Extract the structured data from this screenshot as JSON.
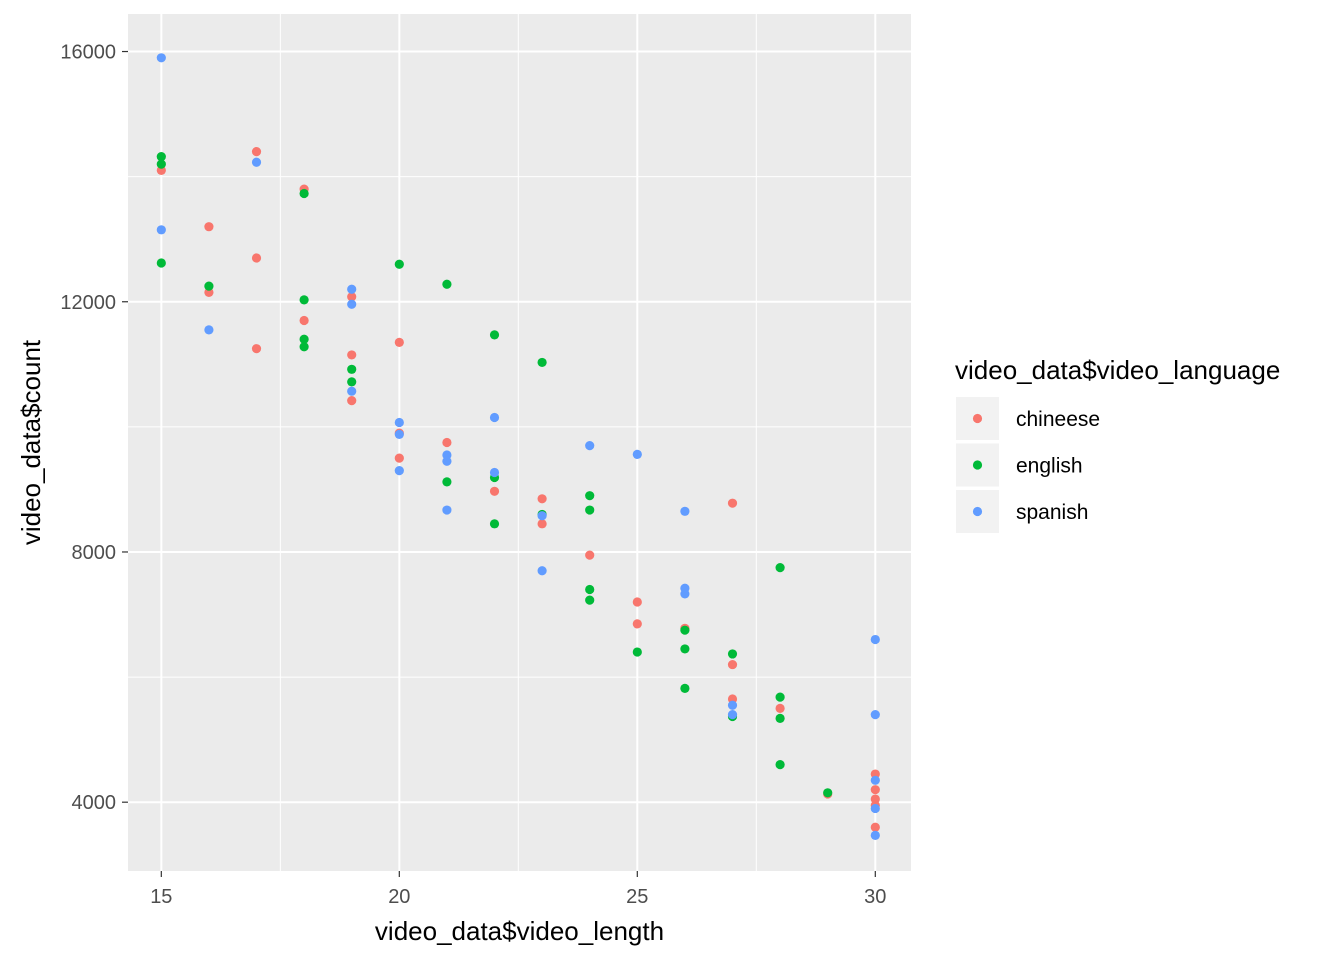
{
  "chart_data": {
    "type": "scatter",
    "xlabel": "video_data$video_length",
    "ylabel": "video_data$count",
    "xlim": [
      14.3,
      30.75
    ],
    "ylim": [
      2900,
      16600
    ],
    "x_ticks": [
      15,
      20,
      25,
      30
    ],
    "x_minor": [
      17.5,
      22.5,
      27.5
    ],
    "y_ticks": [
      4000,
      8000,
      12000,
      16000
    ],
    "y_minor": [
      6000,
      10000,
      14000
    ],
    "x_tick_labels": [
      "15",
      "20",
      "25",
      "30"
    ],
    "y_tick_labels": [
      "4000",
      "8000",
      "12000",
      "16000"
    ],
    "grid": true,
    "legend": {
      "title": "video_data$video_language",
      "placement": "right"
    },
    "colors": {
      "panel_bg": "#EBEBEB",
      "grid": "#FFFFFF",
      "chineese": "#F8766D",
      "english": "#00BA38",
      "spanish": "#619CFF"
    },
    "series": [
      {
        "name": "chineese",
        "color": "#F8766D",
        "points": [
          [
            15,
            14100
          ],
          [
            16,
            13200
          ],
          [
            16,
            12150
          ],
          [
            17,
            14400
          ],
          [
            17,
            12700
          ],
          [
            17,
            11250
          ],
          [
            18,
            13800
          ],
          [
            18,
            11700
          ],
          [
            19,
            12080
          ],
          [
            19,
            11150
          ],
          [
            19,
            10420
          ],
          [
            20,
            11350
          ],
          [
            20,
            9900
          ],
          [
            20,
            9500
          ],
          [
            21,
            9750
          ],
          [
            22,
            8970
          ],
          [
            23,
            8850
          ],
          [
            23,
            8450
          ],
          [
            24,
            7950
          ],
          [
            25,
            7200
          ],
          [
            25,
            6850
          ],
          [
            26,
            6780
          ],
          [
            27,
            8780
          ],
          [
            27,
            6200
          ],
          [
            27,
            5650
          ],
          [
            28,
            5500
          ],
          [
            29,
            4130
          ],
          [
            30,
            4450
          ],
          [
            30,
            4200
          ],
          [
            30,
            4050
          ],
          [
            30,
            3950
          ],
          [
            30,
            3600
          ]
        ]
      },
      {
        "name": "english",
        "color": "#00BA38",
        "points": [
          [
            15,
            14320
          ],
          [
            15,
            14200
          ],
          [
            15,
            12620
          ],
          [
            16,
            12250
          ],
          [
            18,
            13730
          ],
          [
            18,
            12030
          ],
          [
            18,
            11400
          ],
          [
            18,
            11280
          ],
          [
            19,
            10920
          ],
          [
            19,
            10720
          ],
          [
            20,
            12600
          ],
          [
            21,
            12280
          ],
          [
            21,
            9120
          ],
          [
            22,
            11470
          ],
          [
            22,
            9190
          ],
          [
            22,
            8450
          ],
          [
            23,
            11030
          ],
          [
            23,
            8600
          ],
          [
            24,
            8900
          ],
          [
            24,
            8670
          ],
          [
            24,
            7400
          ],
          [
            24,
            7230
          ],
          [
            25,
            6400
          ],
          [
            26,
            6750
          ],
          [
            26,
            6450
          ],
          [
            26,
            5820
          ],
          [
            27,
            6370
          ],
          [
            27,
            5370
          ],
          [
            28,
            7750
          ],
          [
            28,
            5680
          ],
          [
            28,
            5340
          ],
          [
            28,
            4600
          ],
          [
            29,
            4150
          ]
        ]
      },
      {
        "name": "spanish",
        "color": "#619CFF",
        "points": [
          [
            15,
            15900
          ],
          [
            15,
            13150
          ],
          [
            16,
            11550
          ],
          [
            17,
            14230
          ],
          [
            19,
            12200
          ],
          [
            19,
            11960
          ],
          [
            19,
            10570
          ],
          [
            20,
            10070
          ],
          [
            20,
            9880
          ],
          [
            20,
            9300
          ],
          [
            21,
            9550
          ],
          [
            21,
            9450
          ],
          [
            21,
            8670
          ],
          [
            22,
            10150
          ],
          [
            22,
            9270
          ],
          [
            23,
            8580
          ],
          [
            23,
            7700
          ],
          [
            24,
            9700
          ],
          [
            25,
            9560
          ],
          [
            26,
            8650
          ],
          [
            26,
            7420
          ],
          [
            26,
            7330
          ],
          [
            27,
            5550
          ],
          [
            27,
            5400
          ],
          [
            30,
            6600
          ],
          [
            30,
            5400
          ],
          [
            30,
            4350
          ],
          [
            30,
            3900
          ],
          [
            30,
            3470
          ]
        ]
      }
    ]
  }
}
